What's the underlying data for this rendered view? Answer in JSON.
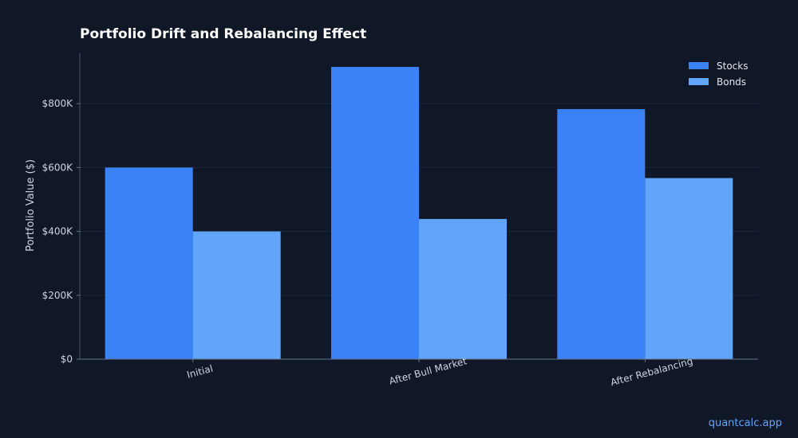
{
  "chart_data": {
    "type": "bar",
    "title": "Portfolio Drift and Rebalancing Effect",
    "xlabel": "",
    "ylabel": "Portfolio Value ($)",
    "categories": [
      "Initial",
      "After Bull Market",
      "After Rebalancing"
    ],
    "series": [
      {
        "name": "Stocks",
        "values": [
          600000,
          915000,
          783000
        ],
        "color": "#3b82f6"
      },
      {
        "name": "Bonds",
        "values": [
          400000,
          439000,
          567000
        ],
        "color": "#60a5fa"
      }
    ],
    "ylim": [
      0,
      960000
    ],
    "yticks": [
      {
        "value": 0,
        "label": "$0"
      },
      {
        "value": 200000,
        "label": "$200K"
      },
      {
        "value": 400000,
        "label": "$400K"
      },
      {
        "value": 600000,
        "label": "$600K"
      },
      {
        "value": 800000,
        "label": "$800K"
      }
    ],
    "grid": true,
    "legend_position": "top-right"
  },
  "footer": {
    "watermark": "quantcalc.app"
  }
}
